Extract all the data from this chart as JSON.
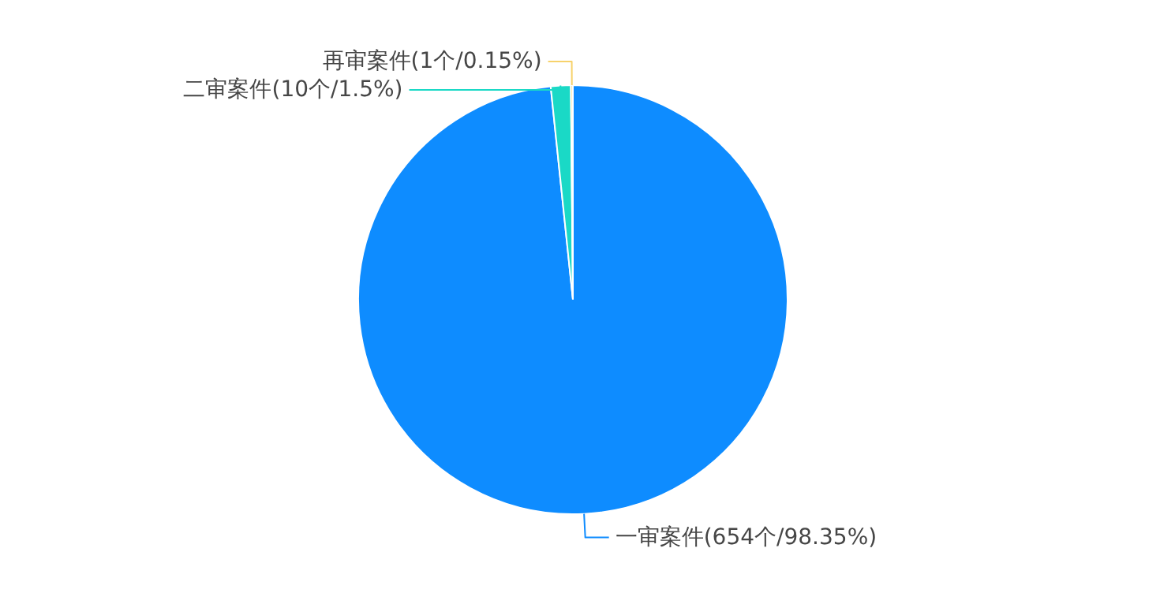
{
  "chart_data": {
    "type": "pie",
    "categories": [
      "一审案件(654个/98.35%)",
      "二审案件(10个/1.5%)",
      "再审案件(1个/0.15%)"
    ],
    "values": [
      654,
      10,
      1
    ],
    "colors": [
      "#0e8cff",
      "#1ad9c6",
      "#f7d26b"
    ],
    "legend": false
  }
}
